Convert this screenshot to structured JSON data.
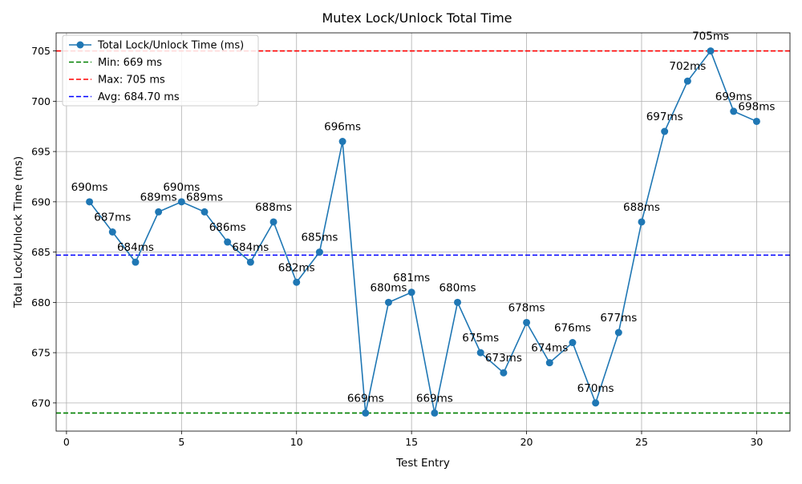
{
  "chart_data": {
    "type": "line",
    "title": "Mutex Lock/Unlock Total Time",
    "xlabel": "Test Entry",
    "ylabel": "Total Lock/Unlock Time (ms)",
    "xlim": [
      -0.45,
      31.45
    ],
    "ylim": [
      667.2,
      706.8
    ],
    "xticks": [
      0,
      5,
      10,
      15,
      20,
      25,
      30
    ],
    "yticks": [
      670,
      675,
      680,
      685,
      690,
      695,
      700,
      705
    ],
    "grid": true,
    "legend_position": "top-left",
    "series": [
      {
        "name": "Total Lock/Unlock Time (ms)",
        "color": "#1f77b4",
        "marker": "circle",
        "x": [
          1,
          2,
          3,
          4,
          5,
          6,
          7,
          8,
          9,
          10,
          11,
          12,
          13,
          14,
          15,
          16,
          17,
          18,
          19,
          20,
          21,
          22,
          23,
          24,
          25,
          26,
          27,
          28,
          29,
          30
        ],
        "values": [
          690,
          687,
          684,
          689,
          690,
          689,
          686,
          684,
          688,
          682,
          685,
          696,
          669,
          680,
          681,
          669,
          680,
          675,
          673,
          678,
          674,
          676,
          670,
          677,
          688,
          697,
          702,
          705,
          699,
          698
        ],
        "point_labels": [
          "690ms",
          "687ms",
          "684ms",
          "689ms",
          "690ms",
          "689ms",
          "686ms",
          "684ms",
          "688ms",
          "682ms",
          "685ms",
          "696ms",
          "669ms",
          "680ms",
          "681ms",
          "669ms",
          "680ms",
          "675ms",
          "673ms",
          "678ms",
          "674ms",
          "676ms",
          "670ms",
          "677ms",
          "688ms",
          "697ms",
          "702ms",
          "705ms",
          "699ms",
          "698ms"
        ]
      }
    ],
    "reference_lines": [
      {
        "name": "Min: 669 ms",
        "value": 669,
        "color": "#008000",
        "style": "dashed"
      },
      {
        "name": "Max: 705 ms",
        "value": 705,
        "color": "#ff0000",
        "style": "dashed"
      },
      {
        "name": "Avg: 684.70 ms",
        "value": 684.7,
        "color": "#0000ff",
        "style": "dashed"
      }
    ]
  }
}
